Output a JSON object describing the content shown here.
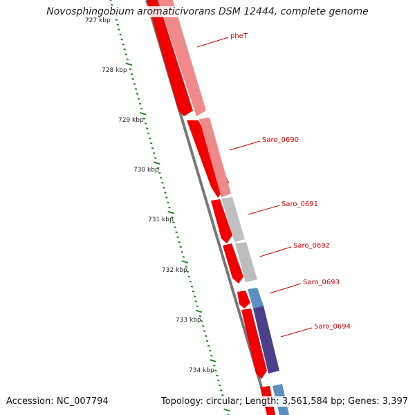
{
  "title": "Novosphingobium aromaticivorans DSM 12444, complete genome",
  "accession": "Accession: NC_007794",
  "summary": "Topology: circular; Length: 3,561,584 bp; Genes: 3,397",
  "ticks": [
    "727 kbp",
    "728 kbp",
    "729 kbp",
    "730 kbp",
    "731 kbp",
    "732 kbp",
    "733 kbp",
    "734 kbp"
  ],
  "gene_labels": [
    "pheT",
    "Saro_0690",
    "Saro_0691",
    "Saro_0692",
    "Saro_0693",
    "Saro_0694"
  ],
  "colors": {
    "forward_strand": "#ff0000",
    "cds_pink": "#f08a8a",
    "cds_grey": "#bdbdbd",
    "cds_blue": "#5a8fbf",
    "cds_purple": "#4b3f8a",
    "backbone": "#888888",
    "ruler": "#228822",
    "label": "#cc0000"
  }
}
